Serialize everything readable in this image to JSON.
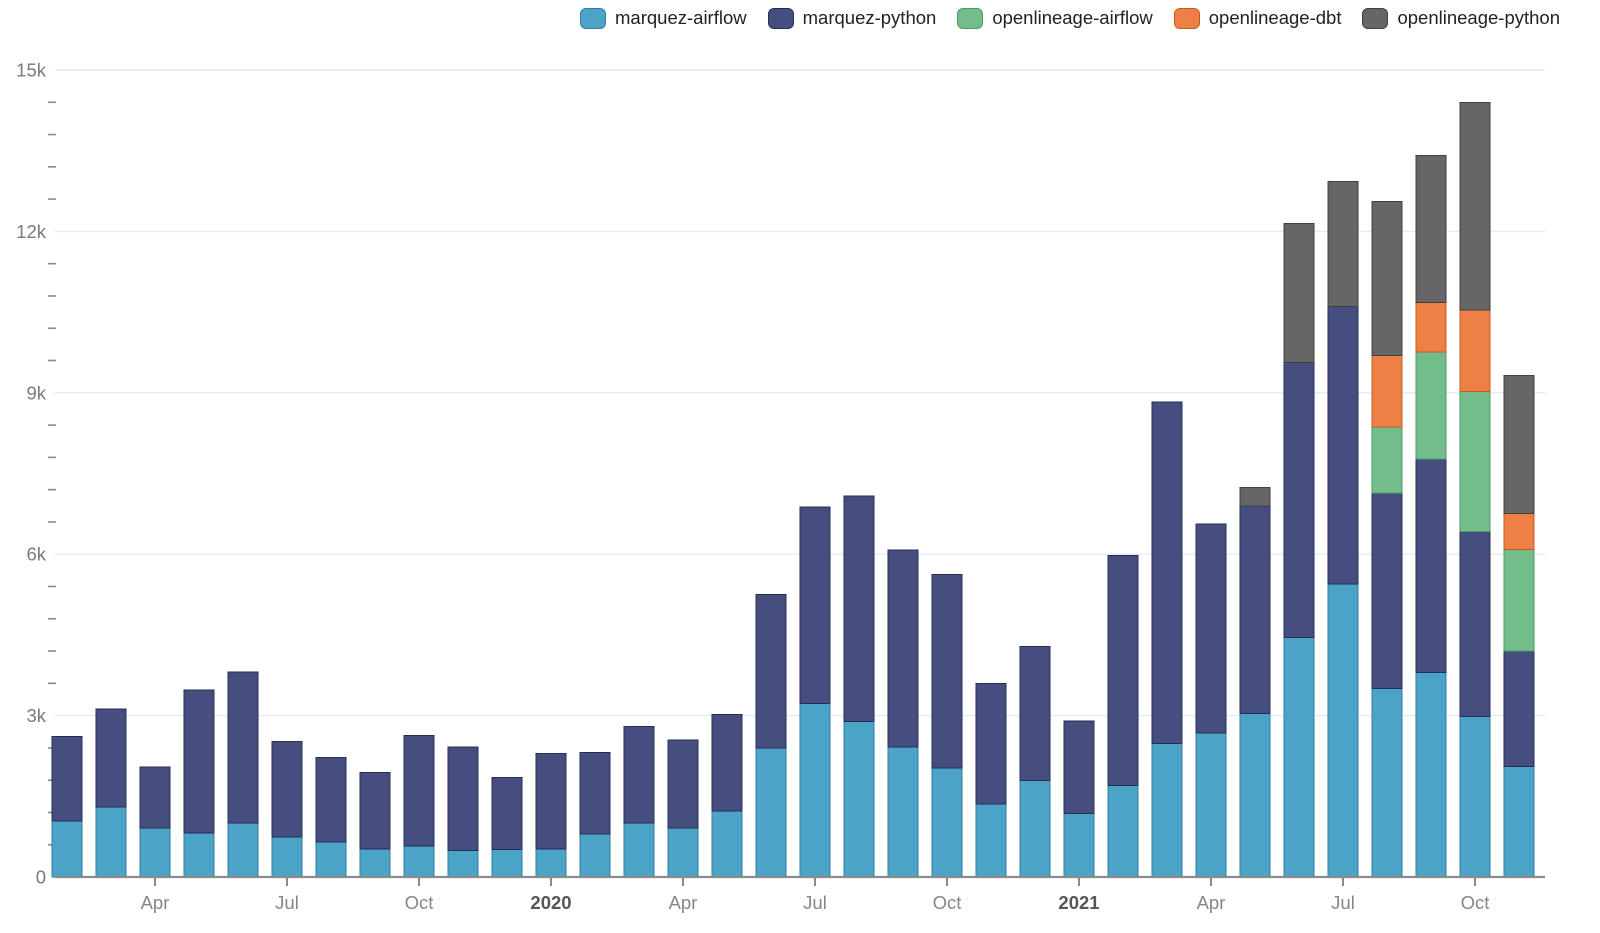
{
  "chart_data": {
    "type": "bar",
    "stacked": true,
    "title": "",
    "xlabel": "",
    "ylabel": "",
    "grid": true,
    "legend_position": "top-right",
    "ylim": [
      0,
      15000
    ],
    "y_major_ticks": [
      0,
      3000,
      6000,
      9000,
      12000,
      15000
    ],
    "y_tick_labels": [
      "0",
      "3k",
      "6k",
      "9k",
      "12k",
      "15k"
    ],
    "y_minor_step": 600,
    "x": [
      "Feb 2019",
      "Mar 2019",
      "Apr 2019",
      "May 2019",
      "Jun 2019",
      "Jul 2019",
      "Aug 2019",
      "Sep 2019",
      "Oct 2019",
      "Nov 2019",
      "Dec 2019",
      "Jan 2020",
      "Feb 2020",
      "Mar 2020",
      "Apr 2020",
      "May 2020",
      "Jun 2020",
      "Jul 2020",
      "Aug 2020",
      "Sep 2020",
      "Oct 2020",
      "Nov 2020",
      "Dec 2020",
      "Jan 2021",
      "Feb 2021",
      "Mar 2021",
      "Apr 2021",
      "May 2021",
      "Jun 2021",
      "Jul 2021",
      "Aug 2021",
      "Sep 2021",
      "Oct 2021",
      "Nov 2021"
    ],
    "x_ticks": [
      {
        "index": 2,
        "label": "Apr",
        "bold": false
      },
      {
        "index": 5,
        "label": "Jul",
        "bold": false
      },
      {
        "index": 8,
        "label": "Oct",
        "bold": false
      },
      {
        "index": 11,
        "label": "2020",
        "bold": true
      },
      {
        "index": 14,
        "label": "Apr",
        "bold": false
      },
      {
        "index": 17,
        "label": "Jul",
        "bold": false
      },
      {
        "index": 20,
        "label": "Oct",
        "bold": false
      },
      {
        "index": 23,
        "label": "2021",
        "bold": true
      },
      {
        "index": 26,
        "label": "Apr",
        "bold": false
      },
      {
        "index": 29,
        "label": "Jul",
        "bold": false
      },
      {
        "index": 32,
        "label": "Oct",
        "bold": false
      }
    ],
    "series": [
      {
        "name": "marquez-airflow",
        "color": "#4BA3C7",
        "stroke": "#2F7FA3",
        "values": [
          1040,
          1300,
          910,
          820,
          1000,
          740,
          650,
          520,
          580,
          490,
          515,
          520,
          800,
          1000,
          910,
          1225,
          2400,
          3225,
          2890,
          2420,
          2030,
          1360,
          1790,
          1180,
          1700,
          2480,
          2680,
          3040,
          4450,
          5450,
          3500,
          3800,
          2980,
          2050
        ]
      },
      {
        "name": "marquez-python",
        "color": "#454E7E",
        "stroke": "#272E55",
        "values": [
          1570,
          1820,
          1130,
          2660,
          2810,
          1780,
          1570,
          1420,
          2050,
          1930,
          1335,
          1780,
          1515,
          1800,
          1635,
          1800,
          2855,
          3650,
          4190,
          3655,
          3595,
          2235,
          2495,
          1720,
          4280,
          6350,
          3880,
          3860,
          5110,
          5150,
          3635,
          3970,
          3440,
          2150
        ]
      },
      {
        "name": "openlineage-airflow",
        "color": "#73BD8B",
        "stroke": "#4C9A6A",
        "values": [
          0,
          0,
          0,
          0,
          0,
          0,
          0,
          0,
          0,
          0,
          0,
          0,
          0,
          0,
          0,
          0,
          0,
          0,
          0,
          0,
          0,
          0,
          0,
          0,
          0,
          0,
          0,
          0,
          0,
          0,
          1230,
          1990,
          2600,
          1890
        ]
      },
      {
        "name": "openlineage-dbt",
        "color": "#EE8046",
        "stroke": "#C05C22",
        "values": [
          0,
          0,
          0,
          0,
          0,
          0,
          0,
          0,
          0,
          0,
          0,
          0,
          0,
          0,
          0,
          0,
          0,
          0,
          0,
          0,
          0,
          0,
          0,
          0,
          0,
          0,
          0,
          0,
          0,
          0,
          1325,
          920,
          1520,
          670
        ]
      },
      {
        "name": "openlineage-python",
        "color": "#666666",
        "stroke": "#3F3F3F",
        "values": [
          0,
          0,
          0,
          0,
          0,
          0,
          0,
          0,
          0,
          0,
          0,
          0,
          0,
          0,
          0,
          0,
          0,
          0,
          0,
          0,
          0,
          0,
          0,
          0,
          0,
          0,
          0,
          340,
          2590,
          2330,
          2870,
          2730,
          3860,
          2560
        ]
      }
    ]
  },
  "colors": {
    "background": "#ffffff",
    "gridline": "#e6eaf3",
    "axis_line": "#8a8a8a",
    "tick_mark": "#8a8a8a",
    "y_tick_label": "#7a7a7a",
    "x_tick_label": "#868686",
    "x_year_label": "#555555",
    "legend_text": "#222222"
  }
}
